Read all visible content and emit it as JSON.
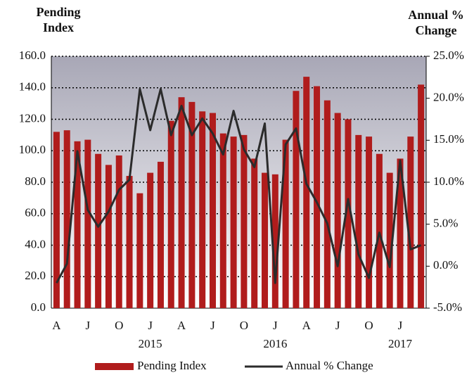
{
  "chart_data": {
    "type": "bar_line",
    "y_label": "Pending Index",
    "y2_label": "Annual % Change",
    "categories": [
      "A",
      null,
      null,
      "J",
      null,
      null,
      "O",
      null,
      null,
      "J",
      null,
      null,
      "A",
      null,
      null,
      "J",
      null,
      null,
      "O",
      null,
      null,
      "J",
      null,
      null,
      "A",
      null,
      null,
      "J",
      null,
      null,
      "O",
      null,
      null,
      "J",
      null,
      null
    ],
    "year_labels": [
      "2015",
      "2016",
      "2017"
    ],
    "series": [
      {
        "name": "Pending Index",
        "color": "#b01c1c",
        "kind": "bar",
        "values": [
          112,
          113,
          106,
          107,
          98,
          91,
          97,
          84,
          73,
          86,
          93,
          119,
          134,
          131,
          125,
          124,
          111,
          109,
          110,
          95,
          86,
          85,
          107,
          138,
          147,
          141,
          132,
          124,
          120,
          110,
          109,
          98,
          86,
          95,
          109,
          142
        ]
      },
      {
        "name": "Annual % Change",
        "color": "#2b2b2b",
        "kind": "line",
        "axis": "y2",
        "values": [
          -2.0,
          0.3,
          13.7,
          6.7,
          4.7,
          6.5,
          9.1,
          10.3,
          21.1,
          16.2,
          21.1,
          15.6,
          19.1,
          15.6,
          17.6,
          15.8,
          13.3,
          18.5,
          13.9,
          11.8,
          17.0,
          -2.0,
          14.5,
          16.4,
          9.8,
          7.6,
          5.1,
          0.0,
          8.0,
          1.4,
          -1.4,
          4.0,
          -0.1,
          12.6,
          2.0,
          2.5
        ]
      }
    ],
    "ylim": [
      0,
      160
    ],
    "yticks": [
      {
        "value": 0,
        "label": "0.0"
      },
      {
        "value": 20,
        "label": "20.0"
      },
      {
        "value": 40,
        "label": "40.0"
      },
      {
        "value": 60,
        "label": "60.0"
      },
      {
        "value": 80,
        "label": "80.0"
      },
      {
        "value": 100,
        "label": "100.0"
      },
      {
        "value": 120,
        "label": "120.0"
      },
      {
        "value": 140,
        "label": "140.0"
      },
      {
        "value": 160,
        "label": "160.0"
      }
    ],
    "y2lim": [
      -5,
      25
    ],
    "y2ticks": [
      {
        "value": -5,
        "label": "-5.0%"
      },
      {
        "value": 0,
        "label": "0.0%"
      },
      {
        "value": 5,
        "label": "5.0%"
      },
      {
        "value": 10,
        "label": "10.0%"
      },
      {
        "value": 15,
        "label": "15.0%"
      },
      {
        "value": 20,
        "label": "20.0%"
      },
      {
        "value": 25,
        "label": "25.0%"
      }
    ],
    "grid": true,
    "legend": "bottom"
  }
}
